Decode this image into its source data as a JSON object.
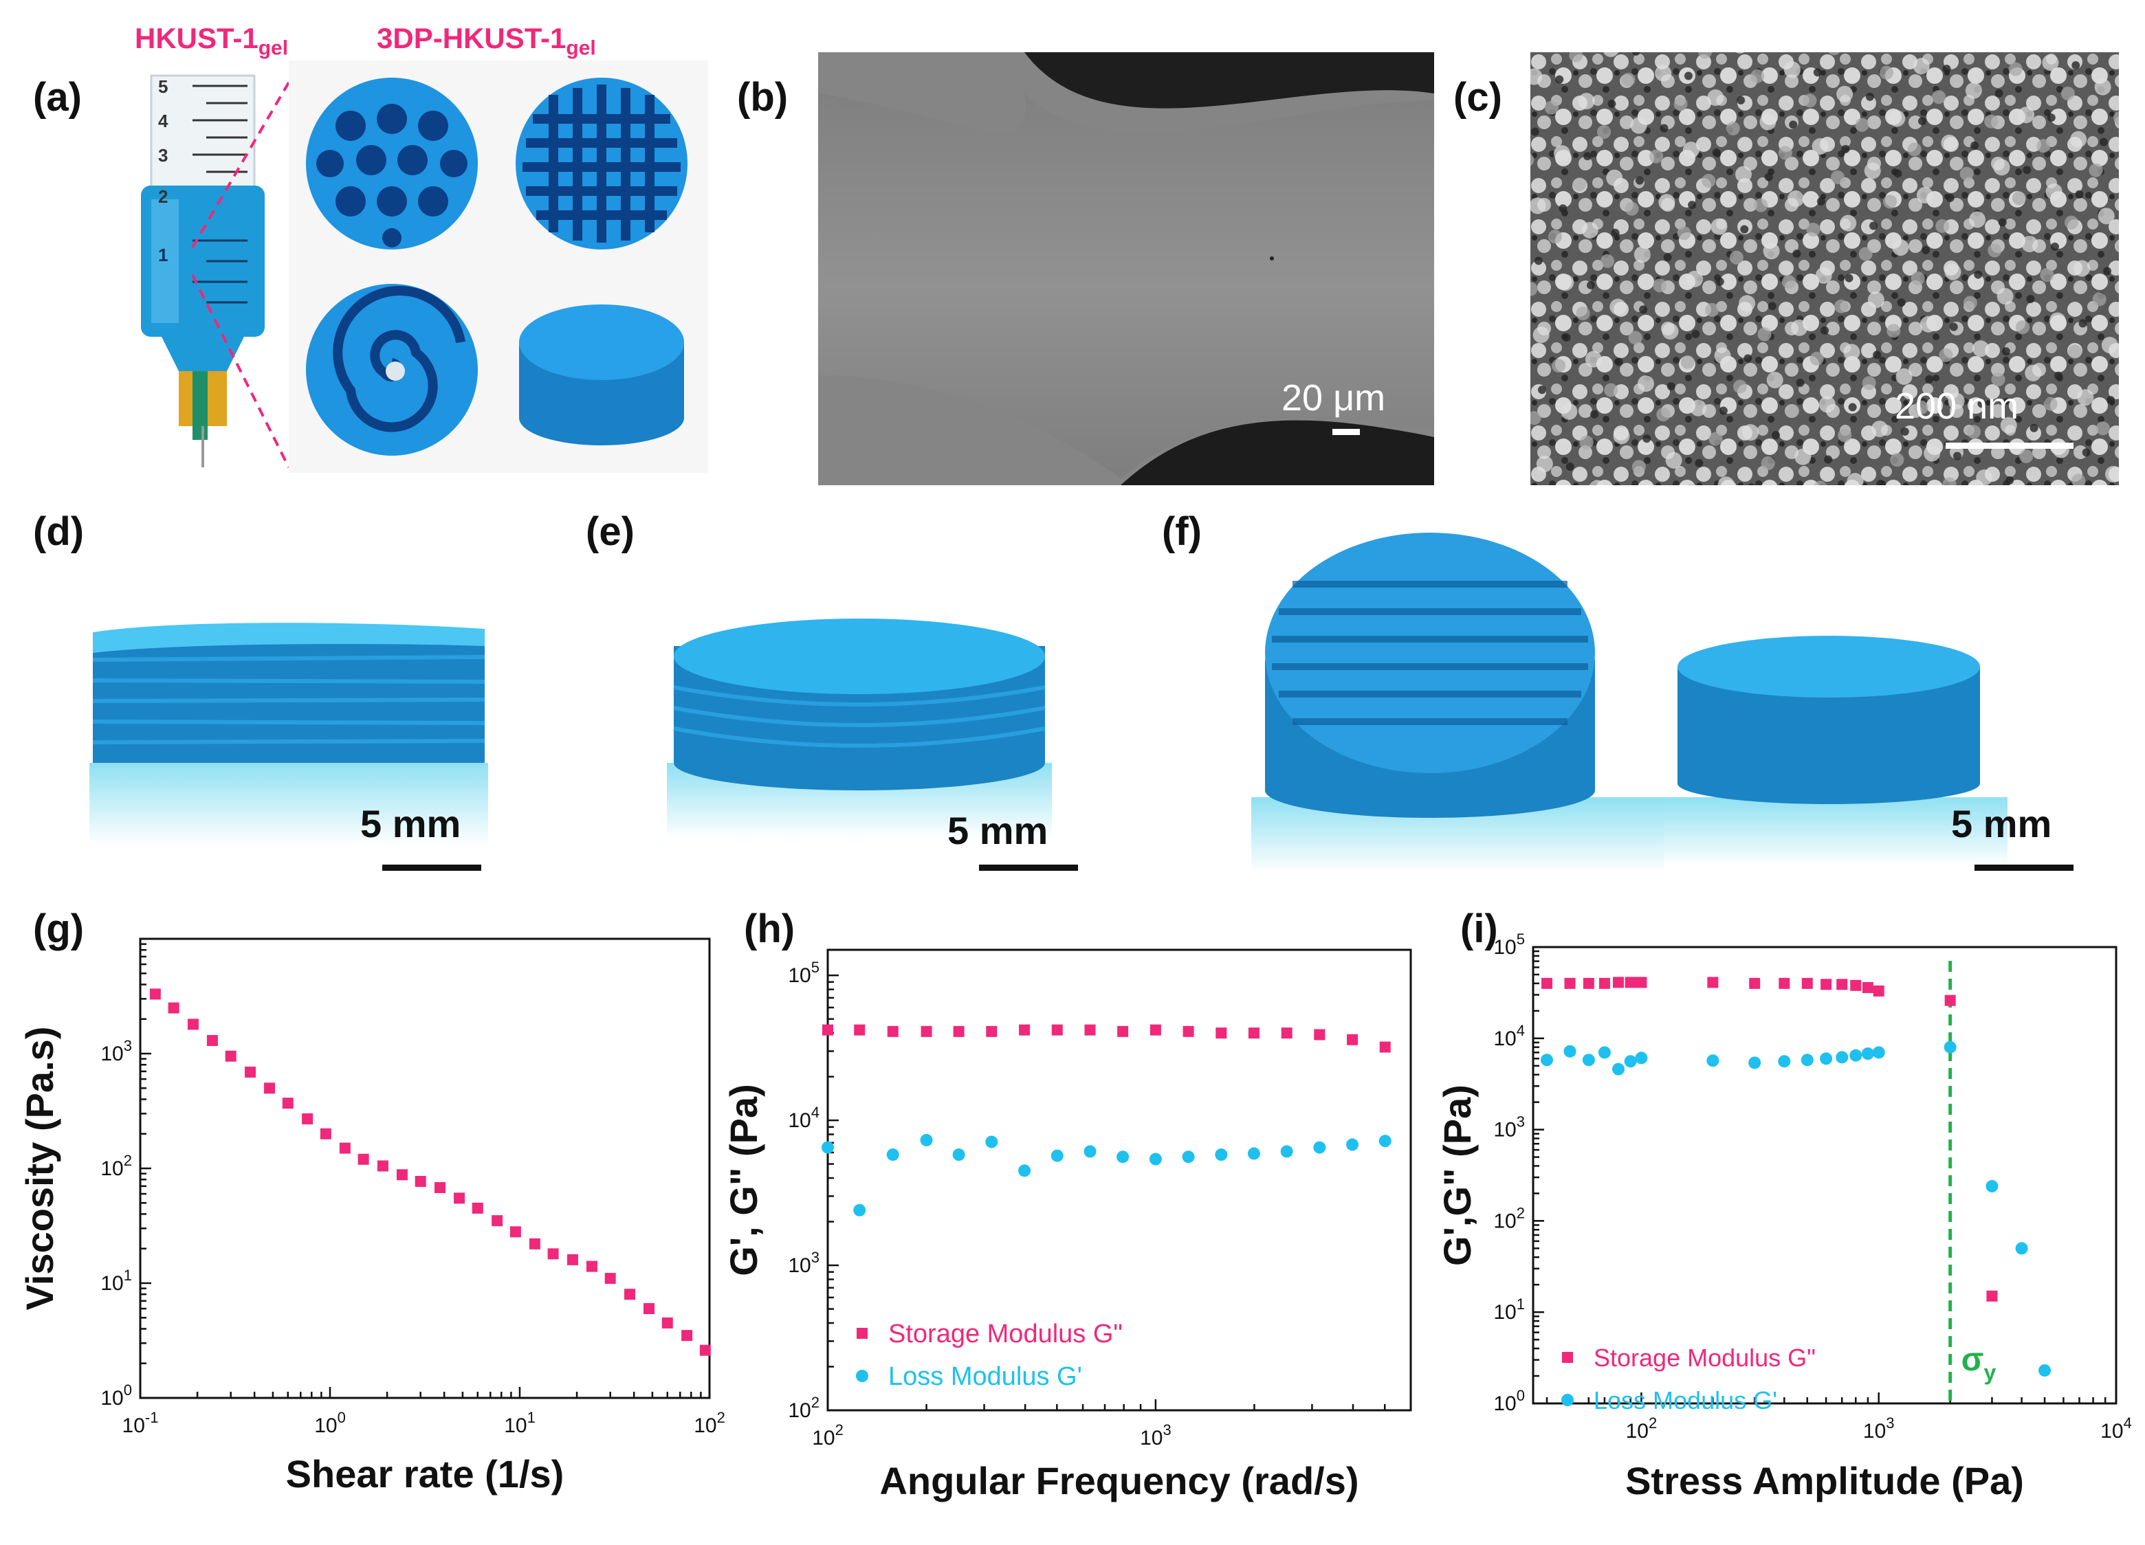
{
  "panels": {
    "a": {
      "label": "(a)",
      "gel_label": "HKUST-1",
      "gel_sub": "gel",
      "printed_label": "3DP-HKUST-1",
      "printed_sub": "gel",
      "syringe_marks": [
        "5",
        "4",
        "3",
        "2",
        "1"
      ]
    },
    "b": {
      "label": "(b)",
      "scale_text": "20 μm"
    },
    "c": {
      "label": "(c)",
      "scale_text": "200 nm"
    },
    "d": {
      "label": "(d)",
      "scale_text": "5 mm"
    },
    "e": {
      "label": "(e)",
      "scale_text": "5 mm"
    },
    "f": {
      "label": "(f)",
      "scale_text": "5 mm"
    },
    "g": {
      "label": "(g)"
    },
    "h": {
      "label": "(h)"
    },
    "i": {
      "label": "(i)"
    }
  },
  "colors": {
    "storage": "#f0287a",
    "loss": "#1ec0ef",
    "yield_line": "#22b24a",
    "gel_blue": "#1e8fd6"
  },
  "chart_data": [
    {
      "id": "g",
      "type": "scatter",
      "xlabel": "Shear rate (1/s)",
      "ylabel": "Viscosity (Pa.s)",
      "xscale": "log",
      "yscale": "log",
      "xlim": [
        0.1,
        100
      ],
      "ylim": [
        1,
        10000
      ],
      "xticks": [
        {
          "base": "10",
          "exp": "-1"
        },
        {
          "base": "10",
          "exp": "0"
        },
        {
          "base": "10",
          "exp": "1"
        },
        {
          "base": "10",
          "exp": "2"
        }
      ],
      "yticks": [
        {
          "base": "10",
          "exp": "0"
        },
        {
          "base": "10",
          "exp": "1"
        },
        {
          "base": "10",
          "exp": "2"
        },
        {
          "base": "10",
          "exp": "3"
        }
      ],
      "series": [
        {
          "marker": "square",
          "color": "#f0287a",
          "x": [
            0.12,
            0.15,
            0.19,
            0.24,
            0.3,
            0.38,
            0.48,
            0.6,
            0.76,
            0.95,
            1.2,
            1.5,
            1.9,
            2.4,
            3.0,
            3.8,
            4.8,
            6.0,
            7.6,
            9.5,
            12,
            15,
            19,
            24,
            30,
            38,
            48,
            60,
            76,
            95
          ],
          "y": [
            3300,
            2500,
            1800,
            1300,
            950,
            690,
            500,
            370,
            270,
            200,
            150,
            120,
            105,
            88,
            77,
            68,
            55,
            45,
            35,
            28,
            22,
            18,
            16,
            14,
            11,
            8,
            6,
            4.5,
            3.5,
            2.6
          ]
        }
      ]
    },
    {
      "id": "h",
      "type": "scatter",
      "xlabel": "Angular Frequency (rad/s)",
      "ylabel": "G', G\" (Pa)",
      "xscale": "log",
      "yscale": "log",
      "xlim": [
        100,
        6000
      ],
      "ylim": [
        100,
        150000
      ],
      "xticks": [
        {
          "base": "10",
          "exp": "2"
        },
        {
          "base": "10",
          "exp": "3"
        }
      ],
      "yticks": [
        {
          "base": "10",
          "exp": "2"
        },
        {
          "base": "10",
          "exp": "3"
        },
        {
          "base": "10",
          "exp": "4"
        },
        {
          "base": "10",
          "exp": "5"
        }
      ],
      "legend_position": "lower-left",
      "series": [
        {
          "name": "Storage Modulus G\"",
          "marker": "square",
          "color": "#f0287a",
          "x": [
            100,
            125,
            158,
            200,
            251,
            316,
            398,
            501,
            631,
            794,
            1000,
            1259,
            1585,
            1995,
            2512,
            3162,
            3981,
            5012
          ],
          "y": [
            42000,
            42000,
            41000,
            41000,
            41000,
            41000,
            42000,
            42000,
            42000,
            41000,
            42000,
            41000,
            40000,
            40000,
            40000,
            39000,
            36000,
            32000
          ]
        },
        {
          "name": "Loss Modulus G'",
          "marker": "circle",
          "color": "#1ec0ef",
          "x": [
            100,
            125,
            158,
            200,
            251,
            316,
            398,
            501,
            631,
            794,
            1000,
            1259,
            1585,
            1995,
            2512,
            3162,
            3981,
            5012
          ],
          "y": [
            6500,
            2400,
            5800,
            7300,
            5800,
            7100,
            4500,
            5700,
            6100,
            5600,
            5400,
            5600,
            5800,
            5900,
            6100,
            6500,
            6800,
            7200
          ]
        }
      ]
    },
    {
      "id": "i",
      "type": "scatter",
      "xlabel": "Stress Amplitude (Pa)",
      "ylabel": "G',G\" (Pa)",
      "xscale": "log",
      "yscale": "log",
      "xlim": [
        35,
        10000
      ],
      "ylim": [
        1,
        100000
      ],
      "xticks": [
        {
          "base": "10",
          "exp": "2"
        },
        {
          "base": "10",
          "exp": "3"
        },
        {
          "base": "10",
          "exp": "4"
        }
      ],
      "yticks": [
        {
          "base": "10",
          "exp": "0"
        },
        {
          "base": "10",
          "exp": "1"
        },
        {
          "base": "10",
          "exp": "2"
        },
        {
          "base": "10",
          "exp": "3"
        },
        {
          "base": "10",
          "exp": "4"
        },
        {
          "base": "10",
          "exp": "5"
        }
      ],
      "legend_position": "lower-left",
      "yield_stress": {
        "x": 2000,
        "label": "σ",
        "sub": "y"
      },
      "series": [
        {
          "name": "Storage Modulus G\"",
          "marker": "square",
          "color": "#f0287a",
          "x": [
            40,
            50,
            60,
            70,
            80,
            90,
            100,
            200,
            300,
            400,
            500,
            600,
            700,
            800,
            900,
            1000,
            2000,
            3000
          ],
          "y": [
            40000,
            40000,
            40000,
            40000,
            41000,
            41000,
            41000,
            41000,
            40000,
            40000,
            40000,
            39000,
            39000,
            38000,
            36000,
            33000,
            26000,
            15
          ]
        },
        {
          "name": "Loss Modulus G'",
          "marker": "circle",
          "color": "#1ec0ef",
          "x": [
            40,
            50,
            60,
            70,
            80,
            90,
            100,
            200,
            300,
            400,
            500,
            600,
            700,
            800,
            900,
            1000,
            2000,
            3000,
            4000,
            5000
          ],
          "y": [
            5800,
            7200,
            5800,
            7000,
            4600,
            5600,
            6100,
            5700,
            5400,
            5600,
            5800,
            6000,
            6200,
            6500,
            6800,
            7000,
            8000,
            240,
            50,
            2.3
          ]
        }
      ]
    }
  ]
}
